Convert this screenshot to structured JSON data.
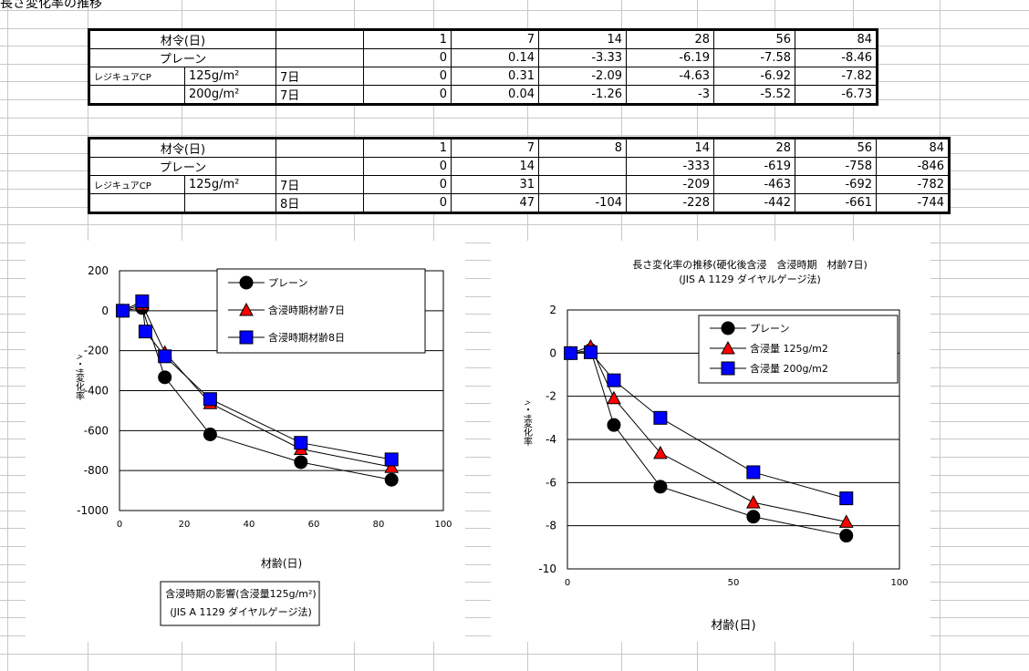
{
  "page_title": "長さ変化率の推移",
  "table1": {
    "header": {
      "label": "材令(日)",
      "cols": [
        "1",
        "7",
        "14",
        "28",
        "56",
        "84"
      ]
    },
    "rows": [
      {
        "c0": "プレーン",
        "c1": "",
        "c2": "",
        "vals": [
          "0",
          "0.14",
          "-3.33",
          "-6.19",
          "-7.58",
          "-8.46"
        ]
      },
      {
        "c0": "レジキュアCP",
        "c1": "125g/m²",
        "c2": "7日",
        "vals": [
          "0",
          "0.31",
          "-2.09",
          "-4.63",
          "-6.92",
          "-7.82"
        ]
      },
      {
        "c0": "",
        "c1": "200g/m²",
        "c2": "7日",
        "vals": [
          "0",
          "0.04",
          "-1.26",
          "-3",
          "-5.52",
          "-6.73"
        ]
      }
    ]
  },
  "table2": {
    "header": {
      "label": "材令(日)",
      "cols": [
        "1",
        "7",
        "8",
        "14",
        "28",
        "56",
        "84"
      ]
    },
    "rows": [
      {
        "c0": "プレーン",
        "c1": "",
        "c2": "",
        "vals": [
          "0",
          "14",
          "",
          "-333",
          "-619",
          "-758",
          "-846"
        ]
      },
      {
        "c0": "レジキュアCP",
        "c1": "125g/m²",
        "c2": "7日",
        "vals": [
          "0",
          "31",
          "",
          "-209",
          "-463",
          "-692",
          "-782"
        ]
      },
      {
        "c0": "",
        "c1": "",
        "c2": "8日",
        "vals": [
          "0",
          "47",
          "-104",
          "-228",
          "-442",
          "-661",
          "-744"
        ]
      }
    ]
  },
  "chart_data": [
    {
      "type": "line",
      "title": "含浸時期の影響(含浸量125g/m²)\n(JIS A 1129 ダイヤルゲージ法)",
      "xlabel": "材齢(日)",
      "ylabel": "ﾍ・ｻ変化率",
      "xlim": [
        0,
        100
      ],
      "ylim": [
        -1000,
        200
      ],
      "xticks": [
        "0",
        "20",
        "40",
        "60",
        "80",
        "100"
      ],
      "yticks": [
        "200",
        "0",
        "-200",
        "-400",
        "-600",
        "-800",
        "-1000"
      ],
      "grid": "horizontal",
      "legend": "top-right",
      "series": [
        {
          "name": "プレーン",
          "marker": "circle",
          "color": "#000000",
          "points": [
            [
              1,
              0
            ],
            [
              7,
              14
            ],
            [
              14,
              -333
            ],
            [
              28,
              -619
            ],
            [
              56,
              -758
            ],
            [
              84,
              -846
            ]
          ]
        },
        {
          "name": "含浸時期材齢7日",
          "marker": "triangle",
          "color": "#ff0000",
          "points": [
            [
              1,
              0
            ],
            [
              7,
              31
            ],
            [
              14,
              -209
            ],
            [
              28,
              -463
            ],
            [
              56,
              -692
            ],
            [
              84,
              -782
            ]
          ]
        },
        {
          "name": "含浸時期材齢8日",
          "marker": "square",
          "color": "#0000ff",
          "points": [
            [
              1,
              0
            ],
            [
              7,
              47
            ],
            [
              8,
              -104
            ],
            [
              14,
              -228
            ],
            [
              28,
              -442
            ],
            [
              56,
              -661
            ],
            [
              84,
              -744
            ]
          ]
        }
      ]
    },
    {
      "type": "line",
      "title": "長さ変化率の推移(硬化後含浸　含浸時期　材齢7日)\n(JIS A 1129 ダイヤルゲージ法)",
      "xlabel": "材齢(日)",
      "ylabel": "ﾍ・ｻ変化率",
      "xlim": [
        0,
        100
      ],
      "ylim": [
        -10,
        2
      ],
      "xticks": [
        "0",
        "50",
        "100"
      ],
      "yticks": [
        "2",
        "0",
        "-2",
        "-4",
        "-6",
        "-8",
        "-10"
      ],
      "grid": "horizontal",
      "legend": "top-right",
      "series": [
        {
          "name": "プレーン",
          "marker": "circle",
          "color": "#000000",
          "points": [
            [
              1,
              0
            ],
            [
              7,
              0.14
            ],
            [
              14,
              -3.33
            ],
            [
              28,
              -6.19
            ],
            [
              56,
              -7.58
            ],
            [
              84,
              -8.46
            ]
          ]
        },
        {
          "name": "含浸量 125g/m2",
          "marker": "triangle",
          "color": "#ff0000",
          "points": [
            [
              1,
              0
            ],
            [
              7,
              0.31
            ],
            [
              14,
              -2.09
            ],
            [
              28,
              -4.63
            ],
            [
              56,
              -6.92
            ],
            [
              84,
              -7.82
            ]
          ]
        },
        {
          "name": "含浸量 200g/m2",
          "marker": "square",
          "color": "#0000ff",
          "points": [
            [
              1,
              0
            ],
            [
              7,
              0.04
            ],
            [
              14,
              -1.26
            ],
            [
              28,
              -3
            ],
            [
              56,
              -5.52
            ],
            [
              84,
              -6.73
            ]
          ]
        }
      ]
    }
  ]
}
